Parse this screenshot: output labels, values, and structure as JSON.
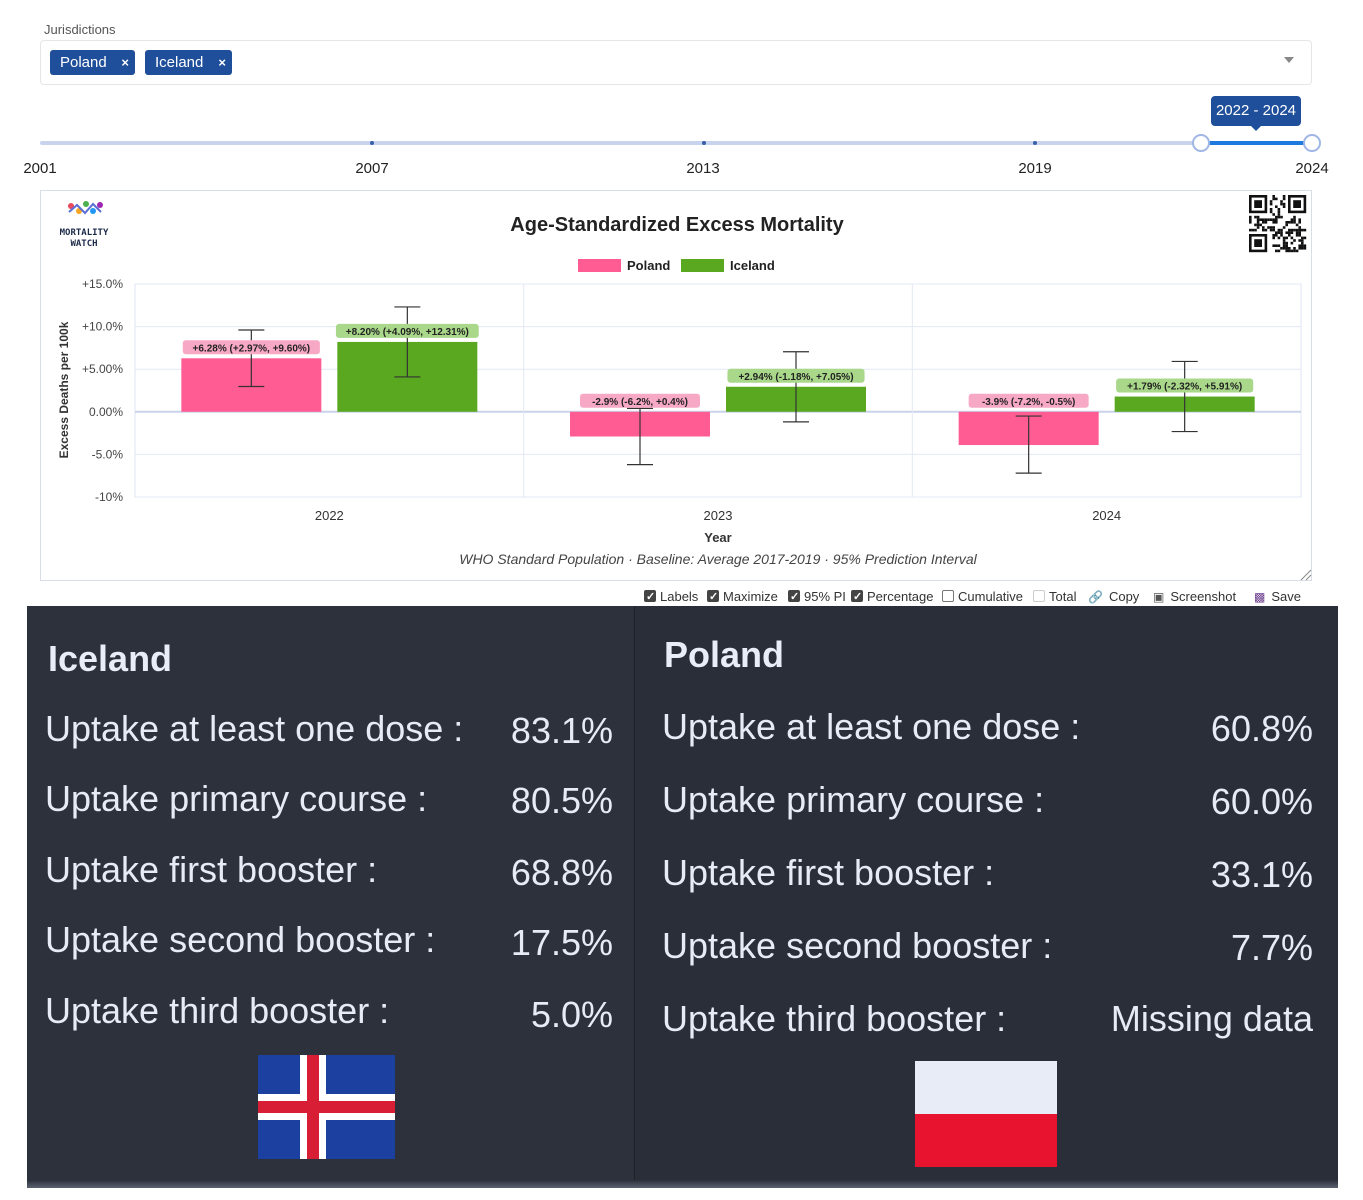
{
  "jurisdictions": {
    "label": "Jurisdictions",
    "selected": [
      "Poland",
      "Iceland"
    ],
    "remove_glyph": "×"
  },
  "year_slider": {
    "tooltip": "2022 - 2024",
    "tick_labels": [
      "2001",
      "2007",
      "2013",
      "2019",
      "2024"
    ],
    "range": [
      2022,
      2024
    ],
    "min": 2001,
    "max": 2024
  },
  "chart": {
    "logo_text_line1": "MORTALITY",
    "logo_text_line2": "WATCH",
    "colors": {
      "Poland": "#ff5c93",
      "Iceland": "#59a820"
    }
  },
  "chart_data": {
    "type": "bar",
    "title": "Age-Standardized Excess Mortality",
    "xlabel": "Year",
    "ylabel": "Excess Deaths per 100k",
    "subtitle": "WHO Standard Population · Baseline: Average 2017-2019 · 95% Prediction Interval",
    "categories": [
      "2022",
      "2023",
      "2024"
    ],
    "yticks": [
      "+15.0%",
      "+10.0%",
      "+5.00%",
      "0.00%",
      "-5.0%",
      "-10%"
    ],
    "ytick_values": [
      15,
      10,
      5,
      0,
      -5,
      -10
    ],
    "ylim": [
      -10,
      15
    ],
    "legend_position": "top-center",
    "grid": true,
    "series": [
      {
        "name": "Poland",
        "values": [
          6.28,
          -2.9,
          -3.9
        ],
        "lower": [
          2.97,
          -6.2,
          -7.2
        ],
        "upper": [
          9.6,
          0.4,
          -0.5
        ],
        "labels": [
          "+6.28% (+2.97%, +9.60%)",
          "-2.9% (-6.2%, +0.4%)",
          "-3.9% (-7.2%, -0.5%)"
        ]
      },
      {
        "name": "Iceland",
        "values": [
          8.2,
          2.94,
          1.79
        ],
        "lower": [
          4.09,
          -1.18,
          -2.32
        ],
        "upper": [
          12.31,
          7.05,
          5.91
        ],
        "labels": [
          "+8.20% (+4.09%, +12.31%)",
          "+2.94% (-1.18%, +7.05%)",
          "+1.79% (-2.32%, +5.91%)"
        ]
      }
    ]
  },
  "toolbar": {
    "options": [
      {
        "label": "Labels",
        "checked": true
      },
      {
        "label": "Maximize",
        "checked": true
      },
      {
        "label": "95% PI",
        "checked": true
      },
      {
        "label": "Percentage",
        "checked": true
      },
      {
        "label": "Cumulative",
        "checked": false
      },
      {
        "label": "Total",
        "checked": false
      }
    ],
    "copy_label": "Copy",
    "screenshot_label": "Screenshot",
    "save_label": "Save"
  },
  "vaccination": {
    "iceland": {
      "title": "Iceland",
      "rows": [
        {
          "label": "Uptake at least one dose :",
          "value": "83.1%"
        },
        {
          "label": "Uptake primary course :",
          "value": "80.5%"
        },
        {
          "label": "Uptake first booster :",
          "value": "68.8%"
        },
        {
          "label": "Uptake second booster :",
          "value": "17.5%"
        },
        {
          "label": "Uptake third booster :",
          "value": "5.0%"
        }
      ]
    },
    "poland": {
      "title": "Poland",
      "rows": [
        {
          "label": "Uptake at least one dose :",
          "value": "60.8%"
        },
        {
          "label": "Uptake primary course :",
          "value": "60.0%"
        },
        {
          "label": "Uptake first booster :",
          "value": "33.1%"
        },
        {
          "label": "Uptake second booster :",
          "value": "7.7%"
        },
        {
          "label": "Uptake third booster :",
          "value": "Missing data"
        }
      ]
    }
  }
}
